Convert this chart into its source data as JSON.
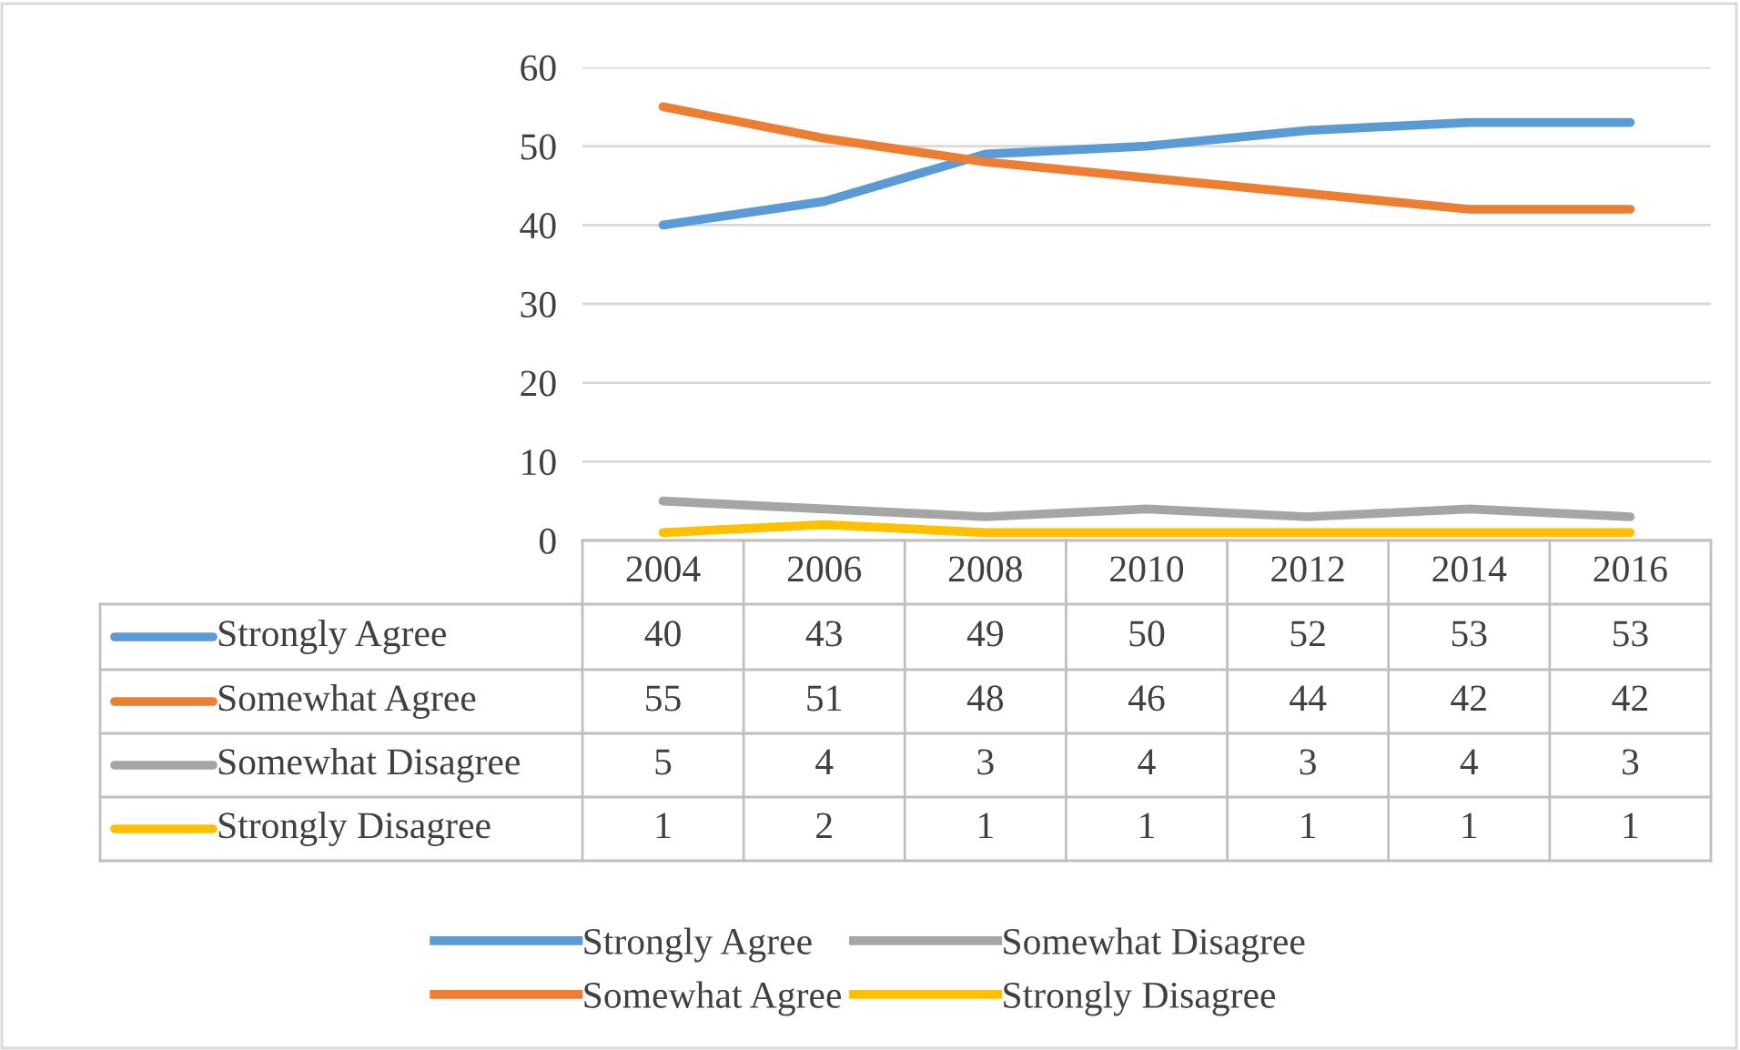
{
  "chart_data": {
    "type": "line",
    "categories": [
      "2004",
      "2006",
      "2008",
      "2010",
      "2012",
      "2014",
      "2016"
    ],
    "series": [
      {
        "name": "Strongly Agree",
        "color": "#5b9bd5",
        "values": [
          40,
          43,
          49,
          50,
          52,
          53,
          53
        ]
      },
      {
        "name": "Somewhat Agree",
        "color": "#ed7d31",
        "values": [
          55,
          51,
          48,
          46,
          44,
          42,
          42
        ]
      },
      {
        "name": "Somewhat Disagree",
        "color": "#a5a5a5",
        "values": [
          5,
          4,
          3,
          4,
          3,
          4,
          3
        ]
      },
      {
        "name": "Strongly Disagree",
        "color": "#ffc000",
        "values": [
          1,
          2,
          1,
          1,
          1,
          1,
          1
        ]
      }
    ],
    "ylim": [
      0,
      60
    ],
    "yticks": [
      0,
      10,
      20,
      30,
      40,
      50,
      60
    ],
    "grid": "y",
    "legend": "bottom",
    "data_labels": true,
    "marker": "none",
    "line_style": "solid"
  }
}
